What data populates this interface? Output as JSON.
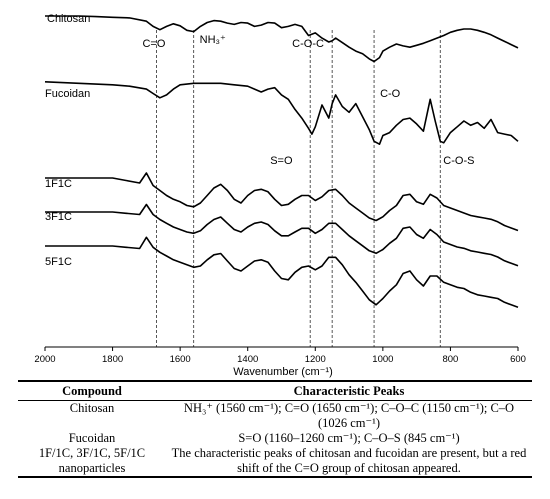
{
  "chart_data": {
    "type": "line",
    "title": "",
    "xlabel": "Wavenumber (cm⁻¹)",
    "ylabel": "",
    "xlim": [
      2000,
      600
    ],
    "x_reversed": true,
    "x_ticks": [
      2000,
      1800,
      1600,
      1400,
      1200,
      1000,
      800,
      600
    ],
    "grid": false,
    "series": [
      {
        "name": "Chitosan",
        "x": [
          2000,
          1900,
          1850,
          1800,
          1750,
          1700,
          1680,
          1660,
          1640,
          1620,
          1600,
          1580,
          1560,
          1540,
          1520,
          1500,
          1480,
          1460,
          1440,
          1420,
          1400,
          1380,
          1360,
          1340,
          1320,
          1300,
          1280,
          1260,
          1240,
          1220,
          1200,
          1180,
          1160,
          1150,
          1140,
          1120,
          1100,
          1080,
          1060,
          1040,
          1026,
          1010,
          1000,
          980,
          960,
          940,
          920,
          900,
          880,
          860,
          840,
          820,
          800,
          780,
          760,
          740,
          720,
          700,
          680,
          660,
          640,
          620,
          600
        ],
        "values": [
          3.0,
          3.0,
          2.95,
          2.9,
          2.85,
          2.6,
          2.2,
          1.95,
          2.2,
          2.4,
          2.25,
          1.9,
          1.8,
          2.2,
          2.5,
          2.65,
          2.6,
          2.45,
          2.35,
          2.5,
          2.45,
          2.2,
          2.3,
          2.5,
          2.45,
          2.1,
          2.2,
          2.35,
          2.2,
          1.5,
          1.7,
          1.3,
          1.0,
          1.1,
          1.3,
          0.95,
          0.6,
          0.3,
          0.1,
          -0.3,
          -0.5,
          -0.2,
          0.3,
          0.6,
          0.85,
          0.7,
          0.6,
          0.75,
          0.9,
          1.1,
          1.3,
          1.5,
          1.75,
          1.9,
          2.0,
          2.0,
          1.9,
          1.75,
          1.55,
          1.3,
          1.05,
          0.8,
          0.55
        ]
      },
      {
        "name": "Fucoidan",
        "x": [
          2000,
          1900,
          1800,
          1750,
          1700,
          1680,
          1660,
          1640,
          1620,
          1600,
          1560,
          1520,
          1480,
          1440,
          1400,
          1380,
          1360,
          1340,
          1320,
          1300,
          1280,
          1260,
          1240,
          1220,
          1210,
          1200,
          1180,
          1160,
          1150,
          1140,
          1120,
          1100,
          1080,
          1060,
          1040,
          1026,
          1010,
          1000,
          980,
          960,
          940,
          920,
          900,
          880,
          860,
          845,
          830,
          820,
          800,
          780,
          760,
          740,
          720,
          700,
          680,
          660,
          640,
          620,
          600
        ],
        "values": [
          2.35,
          2.3,
          2.25,
          2.2,
          2.1,
          1.95,
          1.8,
          1.9,
          2.1,
          2.25,
          2.3,
          2.3,
          2.3,
          2.25,
          2.2,
          2.1,
          2.0,
          2.1,
          2.15,
          1.9,
          1.75,
          1.4,
          1.1,
          0.75,
          0.55,
          0.8,
          1.55,
          1.1,
          1.6,
          1.9,
          1.5,
          1.3,
          1.6,
          1.15,
          0.7,
          0.3,
          0.2,
          0.5,
          0.6,
          0.85,
          1.05,
          1.1,
          0.9,
          0.65,
          1.75,
          1.0,
          0.3,
          0.25,
          0.6,
          0.8,
          1.0,
          0.85,
          0.95,
          0.75,
          1.05,
          0.6,
          0.55,
          0.5,
          0.3
        ]
      },
      {
        "name": "1F1C",
        "x": [
          2000,
          1900,
          1800,
          1760,
          1720,
          1700,
          1680,
          1660,
          1640,
          1620,
          1600,
          1580,
          1560,
          1540,
          1520,
          1500,
          1480,
          1460,
          1440,
          1420,
          1400,
          1380,
          1360,
          1340,
          1320,
          1300,
          1280,
          1260,
          1240,
          1220,
          1200,
          1180,
          1160,
          1140,
          1120,
          1100,
          1080,
          1060,
          1040,
          1020,
          1000,
          980,
          960,
          940,
          920,
          900,
          880,
          860,
          840,
          820,
          800,
          780,
          760,
          740,
          720,
          700,
          680,
          660,
          640,
          620,
          600
        ],
        "values": [
          2.4,
          2.4,
          2.4,
          2.3,
          2.2,
          2.6,
          2.1,
          1.9,
          1.7,
          1.55,
          1.45,
          1.3,
          1.25,
          1.4,
          1.7,
          2.0,
          2.15,
          1.9,
          1.55,
          1.4,
          1.7,
          1.9,
          1.95,
          1.85,
          1.55,
          1.3,
          1.35,
          1.55,
          1.7,
          1.7,
          1.5,
          1.65,
          1.9,
          1.95,
          1.7,
          1.4,
          1.2,
          1.0,
          0.8,
          0.7,
          0.85,
          1.1,
          1.3,
          1.7,
          1.75,
          1.45,
          1.35,
          1.75,
          1.6,
          1.3,
          1.2,
          1.1,
          1.0,
          0.9,
          0.85,
          0.8,
          0.75,
          0.65,
          0.5,
          0.4,
          0.3
        ]
      },
      {
        "name": "3F1C",
        "x": [
          2000,
          1900,
          1800,
          1760,
          1720,
          1700,
          1680,
          1660,
          1640,
          1620,
          1600,
          1580,
          1560,
          1540,
          1520,
          1500,
          1480,
          1460,
          1440,
          1420,
          1400,
          1380,
          1360,
          1340,
          1320,
          1300,
          1280,
          1260,
          1240,
          1220,
          1200,
          1180,
          1160,
          1140,
          1120,
          1100,
          1080,
          1060,
          1040,
          1020,
          1000,
          980,
          960,
          940,
          920,
          900,
          880,
          860,
          840,
          820,
          800,
          780,
          760,
          740,
          720,
          700,
          680,
          660,
          640,
          620,
          600
        ],
        "values": [
          2.4,
          2.4,
          2.4,
          2.35,
          2.3,
          2.7,
          2.3,
          2.1,
          1.95,
          1.8,
          1.7,
          1.6,
          1.55,
          1.65,
          1.9,
          2.1,
          2.2,
          1.95,
          1.7,
          1.6,
          1.8,
          1.95,
          2.0,
          1.9,
          1.65,
          1.45,
          1.45,
          1.6,
          1.75,
          1.75,
          1.55,
          1.7,
          1.95,
          1.95,
          1.7,
          1.45,
          1.25,
          1.05,
          0.85,
          0.75,
          0.9,
          1.15,
          1.35,
          1.75,
          1.8,
          1.5,
          1.35,
          1.7,
          1.5,
          1.2,
          1.1,
          1.0,
          0.95,
          0.85,
          0.8,
          0.75,
          0.7,
          0.6,
          0.45,
          0.35,
          0.25
        ]
      },
      {
        "name": "5F1C",
        "x": [
          2000,
          1900,
          1800,
          1760,
          1720,
          1700,
          1680,
          1660,
          1640,
          1620,
          1600,
          1580,
          1560,
          1540,
          1520,
          1500,
          1480,
          1460,
          1440,
          1420,
          1400,
          1380,
          1360,
          1340,
          1320,
          1300,
          1280,
          1260,
          1240,
          1220,
          1200,
          1180,
          1160,
          1140,
          1120,
          1100,
          1080,
          1060,
          1040,
          1020,
          1000,
          980,
          960,
          940,
          920,
          900,
          880,
          860,
          840,
          820,
          800,
          780,
          760,
          740,
          720,
          700,
          680,
          660,
          640,
          620,
          600
        ],
        "values": [
          2.4,
          2.4,
          2.4,
          2.35,
          2.3,
          2.75,
          2.35,
          2.15,
          2.0,
          1.85,
          1.75,
          1.65,
          1.55,
          1.6,
          1.85,
          2.05,
          2.1,
          1.8,
          1.5,
          1.4,
          1.6,
          1.8,
          1.85,
          1.75,
          1.4,
          1.1,
          1.05,
          1.35,
          1.55,
          1.6,
          1.45,
          1.6,
          1.95,
          1.95,
          1.65,
          1.25,
          0.95,
          0.6,
          0.25,
          0.05,
          0.3,
          0.6,
          0.85,
          1.3,
          1.4,
          1.05,
          0.8,
          1.2,
          1.2,
          0.95,
          0.85,
          0.75,
          0.7,
          0.55,
          0.45,
          0.4,
          0.35,
          0.3,
          0.15,
          0.05,
          -0.05
        ]
      }
    ],
    "peak_markers": [
      {
        "x": 1670,
        "label": "C=O"
      },
      {
        "x": 1560,
        "label": "NH₃⁺"
      },
      {
        "x": 1215,
        "label": "S=O"
      },
      {
        "x": 1150,
        "label": "C-O-C"
      },
      {
        "x": 1026,
        "label": "C-O"
      },
      {
        "x": 830,
        "label": "C-O-S"
      }
    ]
  },
  "table": {
    "headers": [
      "Compound",
      "Characteristic Peaks"
    ],
    "rows": [
      {
        "compound": "Chitosan",
        "peaks": "NH₃⁺ (1560 cm⁻¹); C=O (1650 cm⁻¹); C–O–C (1150 cm⁻¹); C–O (1026 cm⁻¹)"
      },
      {
        "compound": "Fucoidan",
        "peaks": "S=O (1160–1260 cm⁻¹); C–O–S (845 cm⁻¹)"
      },
      {
        "compound": "1F/1C, 3F/1C, 5F/1C nanoparticles",
        "peaks": "The characteristic peaks of chitosan and fucoidan are present, but a red shift of the C=O group of chitosan appeared."
      }
    ]
  }
}
